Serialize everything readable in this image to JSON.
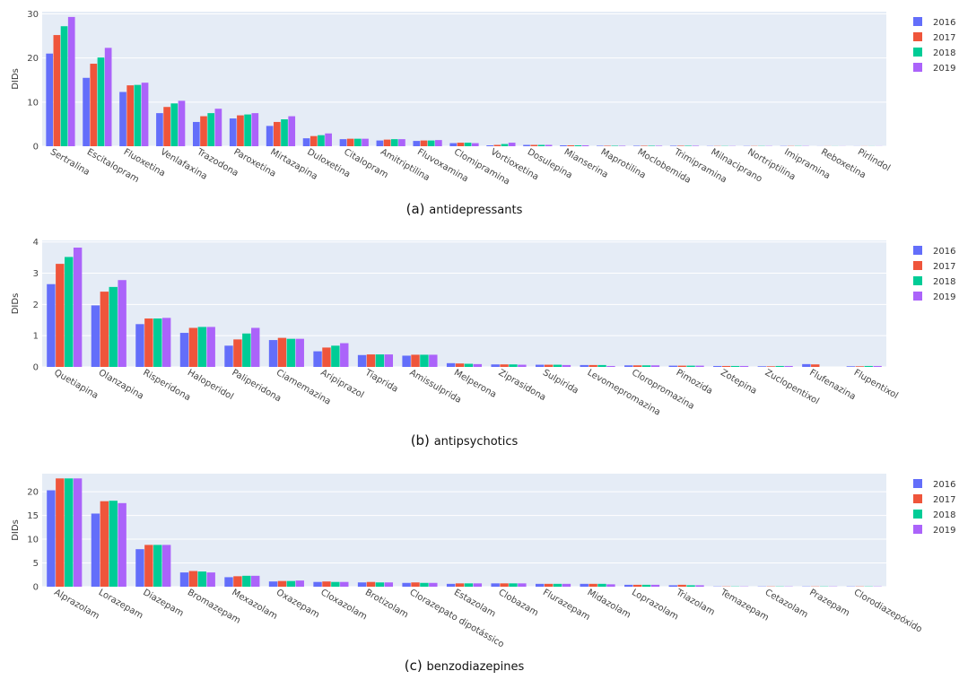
{
  "chart_data": [
    {
      "type": "bar",
      "caption": {
        "letter": "(a)",
        "text": "antidepressants"
      },
      "ylabel": "DIDs",
      "ylim": [
        0,
        30.5
      ],
      "yticks": [
        0,
        10,
        20,
        30
      ],
      "grid": true,
      "legend_position": "right",
      "categories": [
        "Sertralina",
        "Escitalopram",
        "Fluoxetina",
        "Venlafaxina",
        "Trazodona",
        "Paroxetina",
        "Mirtazapina",
        "Duloxetina",
        "Citalopram",
        "Amitriptilina",
        "Fluvoxamina",
        "Clomipramina",
        "Vortioxetina",
        "Dosulepina",
        "Mianserina",
        "Maprotilina",
        "Moclobemida",
        "Trimipramina",
        "Milnaciprano",
        "Nortriptilina",
        "Imipramina",
        "Reboxetina",
        "Pirlindol"
      ],
      "series": [
        {
          "name": "2016",
          "values": [
            21.0,
            15.5,
            12.3,
            7.5,
            5.5,
            6.3,
            4.6,
            1.8,
            1.6,
            1.3,
            1.2,
            0.7,
            0.2,
            0.3,
            0.2,
            0.1,
            0.1,
            0.1,
            0.05,
            0.05,
            0.05,
            0.02,
            0.02
          ]
        },
        {
          "name": "2017",
          "values": [
            25.2,
            18.7,
            13.8,
            8.9,
            6.8,
            7.0,
            5.5,
            2.3,
            1.7,
            1.5,
            1.3,
            0.8,
            0.3,
            0.3,
            0.2,
            0.1,
            0.1,
            0.1,
            0.05,
            0.05,
            0.05,
            0.02,
            0.02
          ]
        },
        {
          "name": "2018",
          "values": [
            27.2,
            20.1,
            13.9,
            9.7,
            7.5,
            7.2,
            6.1,
            2.5,
            1.7,
            1.6,
            1.3,
            0.8,
            0.5,
            0.3,
            0.2,
            0.1,
            0.1,
            0.1,
            0.05,
            0.05,
            0.05,
            0.02,
            0.02
          ]
        },
        {
          "name": "2019",
          "values": [
            29.3,
            22.3,
            14.4,
            10.3,
            8.5,
            7.5,
            6.8,
            2.9,
            1.7,
            1.6,
            1.4,
            0.7,
            0.8,
            0.3,
            0.2,
            0.1,
            0.1,
            0.1,
            0.05,
            0.05,
            0.05,
            0.02,
            0.02
          ]
        }
      ]
    },
    {
      "type": "bar",
      "caption": {
        "letter": "(b)",
        "text": "antipsychotics"
      },
      "ylabel": "DIDs",
      "ylim": [
        0,
        4.05
      ],
      "yticks": [
        0,
        1,
        2,
        3,
        4
      ],
      "grid": true,
      "legend_position": "right",
      "categories": [
        "Quetiapina",
        "Olanzapina",
        "Risperidona",
        "Haloperidol",
        "Paliperidona",
        "Ciamemazina",
        "Aripiprazol",
        "Tiaprida",
        "Amissulprida",
        "Melperona",
        "Ziprasidona",
        "Sulpirida",
        "Levomepromazina",
        "Cloropromazina",
        "Pimozida",
        "Zotepina",
        "Zuclopentixol",
        "Flufenazina",
        "Flupentixol"
      ],
      "series": [
        {
          "name": "2016",
          "values": [
            2.65,
            1.97,
            1.37,
            1.09,
            0.68,
            0.86,
            0.5,
            0.38,
            0.36,
            0.12,
            0.08,
            0.07,
            0.06,
            0.05,
            0.04,
            0.03,
            0.02,
            0.09,
            0.02
          ]
        },
        {
          "name": "2017",
          "values": [
            3.3,
            2.41,
            1.55,
            1.25,
            0.88,
            0.93,
            0.62,
            0.4,
            0.39,
            0.11,
            0.08,
            0.07,
            0.06,
            0.05,
            0.04,
            0.03,
            0.02,
            0.08,
            0.02
          ]
        },
        {
          "name": "2018",
          "values": [
            3.52,
            2.56,
            1.55,
            1.28,
            1.07,
            0.9,
            0.68,
            0.4,
            0.39,
            0.1,
            0.08,
            0.07,
            0.06,
            0.05,
            0.04,
            0.03,
            0.03,
            0.0,
            0.03
          ]
        },
        {
          "name": "2019",
          "values": [
            3.82,
            2.78,
            1.57,
            1.28,
            1.25,
            0.9,
            0.76,
            0.4,
            0.39,
            0.09,
            0.07,
            0.06,
            0.03,
            0.05,
            0.04,
            0.03,
            0.03,
            0.0,
            0.03
          ]
        }
      ]
    },
    {
      "type": "bar",
      "caption": {
        "letter": "(c)",
        "text": "benzodiazepines"
      },
      "ylabel": "DIDs",
      "ylim": [
        0,
        23.8
      ],
      "yticks": [
        0,
        5,
        10,
        15,
        20
      ],
      "grid": true,
      "legend_position": "right",
      "categories": [
        "Alprazolam",
        "Lorazepam",
        "Diazepam",
        "Bromazepam",
        "Mexazolam",
        "Oxazepam",
        "Cloxazolam",
        "Brotizolam",
        "Clorazepato dipotássico",
        "Estazolam",
        "Clobazam",
        "Flurazepam",
        "Midazolam",
        "Loprazolam",
        "Triazolam",
        "Temazepam",
        "Cetazolam",
        "Prazepam",
        "Clorodiazepóxido"
      ],
      "series": [
        {
          "name": "2016",
          "values": [
            20.3,
            15.4,
            7.9,
            3.0,
            2.0,
            1.1,
            1.0,
            0.9,
            0.8,
            0.6,
            0.7,
            0.6,
            0.6,
            0.4,
            0.3,
            0.05,
            0.05,
            0.05,
            0.05
          ]
        },
        {
          "name": "2017",
          "values": [
            22.8,
            18.0,
            8.8,
            3.3,
            2.2,
            1.2,
            1.1,
            1.0,
            0.9,
            0.7,
            0.7,
            0.6,
            0.6,
            0.4,
            0.4,
            0.05,
            0.05,
            0.05,
            0.05
          ]
        },
        {
          "name": "2018",
          "values": [
            22.8,
            18.1,
            8.8,
            3.2,
            2.3,
            1.2,
            1.0,
            0.9,
            0.8,
            0.7,
            0.7,
            0.6,
            0.6,
            0.4,
            0.3,
            0.05,
            0.05,
            0.05,
            0.05
          ]
        },
        {
          "name": "2019",
          "values": [
            22.8,
            17.6,
            8.8,
            3.0,
            2.3,
            1.3,
            1.0,
            0.9,
            0.8,
            0.7,
            0.7,
            0.6,
            0.5,
            0.4,
            0.3,
            0.05,
            0.05,
            0.05,
            0.05
          ]
        }
      ]
    }
  ],
  "colors": {
    "2016": "#636efa",
    "2017": "#ef553b",
    "2018": "#00cc96",
    "2019": "#ab63fa",
    "plot_bg": "#e5ecf6",
    "grid": "#ffffff"
  }
}
